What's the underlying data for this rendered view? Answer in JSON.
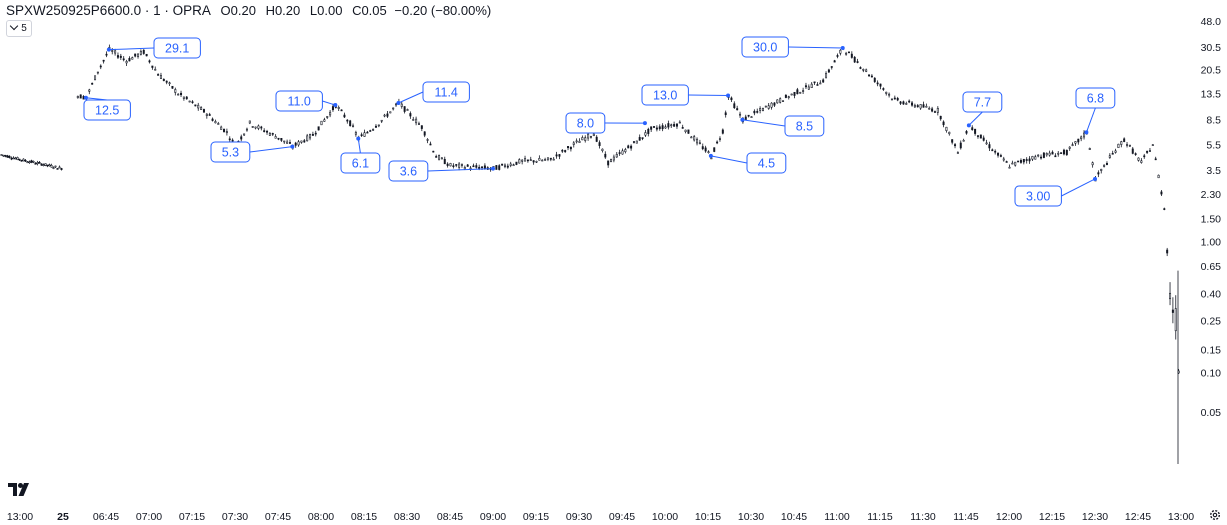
{
  "header": {
    "symbol": "SPXW250925P6600.0 · 1 · OPRA",
    "o_label": "O",
    "o_value": "0.20",
    "h_label": "H",
    "h_value": "0.20",
    "l_label": "L",
    "l_value": "0.00",
    "c_label": "C",
    "c_value": "0.05",
    "change": "−0.20 (−80.00%)"
  },
  "collapse_button": {
    "label": "5"
  },
  "colors": {
    "candle": "#131722",
    "label_border": "#2962ff",
    "label_text": "#2962ff",
    "leader": "#2962ff"
  },
  "chart_data": {
    "type": "candlestick",
    "y_scale": "log",
    "y_ticks": [
      "48.0",
      "30.5",
      "20.5",
      "13.5",
      "8.5",
      "5.5",
      "3.5",
      "2.30",
      "1.50",
      "1.00",
      "0.65",
      "0.40",
      "0.25",
      "0.15",
      "0.10",
      "0.05"
    ],
    "x_ticks": [
      "13:00",
      "25",
      "06:45",
      "07:00",
      "07:15",
      "07:30",
      "07:45",
      "08:00",
      "08:15",
      "08:30",
      "08:45",
      "09:00",
      "09:15",
      "09:30",
      "09:45",
      "10:00",
      "10:15",
      "10:30",
      "10:45",
      "11:00",
      "11:15",
      "11:30",
      "11:45",
      "12:00",
      "12:15",
      "12:30",
      "12:45",
      "13:00"
    ],
    "price_path": [
      {
        "t": "prev",
        "v": 4.6
      },
      {
        "t": "prev",
        "v": 4.2
      },
      {
        "t": "prev",
        "v": 3.9
      },
      {
        "t": "prev",
        "v": 3.6
      },
      {
        "t": "06:35",
        "v": 13.0
      },
      {
        "t": "06:38",
        "v": 12.5
      },
      {
        "t": "06:42",
        "v": 20.0
      },
      {
        "t": "06:46",
        "v": 29.1
      },
      {
        "t": "06:52",
        "v": 24.0
      },
      {
        "t": "06:58",
        "v": 28.0
      },
      {
        "t": "07:03",
        "v": 19.0
      },
      {
        "t": "07:10",
        "v": 13.5
      },
      {
        "t": "07:20",
        "v": 9.5
      },
      {
        "t": "07:27",
        "v": 6.8
      },
      {
        "t": "07:30",
        "v": 5.3
      },
      {
        "t": "07:35",
        "v": 8.0
      },
      {
        "t": "07:45",
        "v": 6.2
      },
      {
        "t": "07:50",
        "v": 5.3
      },
      {
        "t": "07:57",
        "v": 6.5
      },
      {
        "t": "08:05",
        "v": 11.0
      },
      {
        "t": "08:10",
        "v": 8.0
      },
      {
        "t": "08:13",
        "v": 6.1
      },
      {
        "t": "08:20",
        "v": 8.0
      },
      {
        "t": "08:27",
        "v": 11.4
      },
      {
        "t": "08:35",
        "v": 7.5
      },
      {
        "t": "08:40",
        "v": 4.5
      },
      {
        "t": "08:45",
        "v": 3.8
      },
      {
        "t": "09:00",
        "v": 3.6
      },
      {
        "t": "09:10",
        "v": 4.1
      },
      {
        "t": "09:20",
        "v": 4.2
      },
      {
        "t": "09:28",
        "v": 5.5
      },
      {
        "t": "09:35",
        "v": 6.7
      },
      {
        "t": "09:40",
        "v": 4.0
      },
      {
        "t": "09:50",
        "v": 5.8
      },
      {
        "t": "09:55",
        "v": 7.2
      },
      {
        "t": "10:05",
        "v": 8.0
      },
      {
        "t": "10:12",
        "v": 5.5
      },
      {
        "t": "10:16",
        "v": 4.5
      },
      {
        "t": "10:20",
        "v": 7.0
      },
      {
        "t": "10:22",
        "v": 13.0
      },
      {
        "t": "10:27",
        "v": 8.5
      },
      {
        "t": "10:35",
        "v": 10.5
      },
      {
        "t": "10:45",
        "v": 13.5
      },
      {
        "t": "10:55",
        "v": 17.0
      },
      {
        "t": "11:02",
        "v": 30.0
      },
      {
        "t": "11:10",
        "v": 20.0
      },
      {
        "t": "11:20",
        "v": 12.0
      },
      {
        "t": "11:35",
        "v": 10.0
      },
      {
        "t": "11:42",
        "v": 4.8
      },
      {
        "t": "11:46",
        "v": 7.7
      },
      {
        "t": "11:55",
        "v": 4.8
      },
      {
        "t": "12:00",
        "v": 3.8
      },
      {
        "t": "12:10",
        "v": 4.5
      },
      {
        "t": "12:20",
        "v": 4.8
      },
      {
        "t": "12:27",
        "v": 6.8
      },
      {
        "t": "12:30",
        "v": 3.0
      },
      {
        "t": "12:37",
        "v": 5.0
      },
      {
        "t": "12:40",
        "v": 6.0
      },
      {
        "t": "12:46",
        "v": 4.0
      },
      {
        "t": "12:50",
        "v": 5.5
      },
      {
        "t": "12:54",
        "v": 1.8
      },
      {
        "t": "12:56",
        "v": 0.4
      },
      {
        "t": "12:58",
        "v": 0.25
      },
      {
        "t": "13:00",
        "v": 0.05
      }
    ],
    "annotations": [
      {
        "label": "12.5",
        "t": "06:38",
        "v": 12.5
      },
      {
        "label": "29.1",
        "t": "06:46",
        "v": 29.1
      },
      {
        "label": "5.3",
        "t": "07:50",
        "v": 5.3
      },
      {
        "label": "11.0",
        "t": "08:05",
        "v": 11.0
      },
      {
        "label": "6.1",
        "t": "08:13",
        "v": 6.1
      },
      {
        "label": "11.4",
        "t": "08:27",
        "v": 11.4
      },
      {
        "label": "3.6",
        "t": "09:00",
        "v": 3.6
      },
      {
        "label": "8.0",
        "t": "09:53",
        "v": 8.0
      },
      {
        "label": "13.0",
        "t": "10:22",
        "v": 13.0
      },
      {
        "label": "4.5",
        "t": "10:16",
        "v": 4.5
      },
      {
        "label": "8.5",
        "t": "10:27",
        "v": 8.5
      },
      {
        "label": "30.0",
        "t": "11:02",
        "v": 30.0
      },
      {
        "label": "7.7",
        "t": "11:46",
        "v": 7.7
      },
      {
        "label": "3.00",
        "t": "12:30",
        "v": 3.0
      },
      {
        "label": "6.8",
        "t": "12:27",
        "v": 6.8
      }
    ]
  }
}
